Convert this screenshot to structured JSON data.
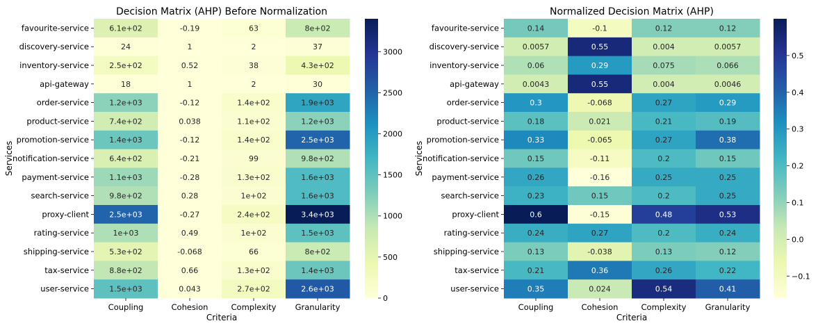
{
  "chart_data": [
    {
      "type": "heatmap",
      "title": "Decision Matrix (AHP) Before Normalization",
      "xlabel": "Criteria",
      "ylabel": "Services",
      "columns": [
        "Coupling",
        "Cohesion",
        "Complexity",
        "Granularity"
      ],
      "rows": [
        "favourite-service",
        "discovery-service",
        "inventory-service",
        "api-gateway",
        "order-service",
        "product-service",
        "promotion-service",
        "notification-service",
        "payment-service",
        "search-service",
        "proxy-client",
        "rating-service",
        "shipping-service",
        "tax-service",
        "user-service"
      ],
      "values": [
        [
          610,
          -0.19,
          63,
          800
        ],
        [
          24,
          1,
          2,
          37
        ],
        [
          250,
          0.52,
          38,
          430
        ],
        [
          18,
          1,
          2,
          30
        ],
        [
          1200,
          -0.12,
          140,
          1900
        ],
        [
          740,
          0.038,
          110,
          1200
        ],
        [
          1400,
          -0.12,
          140,
          2500
        ],
        [
          640,
          -0.21,
          99,
          980
        ],
        [
          1100,
          -0.28,
          130,
          1600
        ],
        [
          980,
          0.28,
          100,
          1600
        ],
        [
          2500,
          -0.27,
          240,
          3400
        ],
        [
          1000,
          0.49,
          100,
          1500
        ],
        [
          530,
          -0.068,
          66,
          800
        ],
        [
          880,
          0.66,
          130,
          1400
        ],
        [
          1500,
          0.043,
          270,
          2600
        ]
      ],
      "labels": [
        [
          "6.1e+02",
          "-0.19",
          "63",
          "8e+02"
        ],
        [
          "24",
          "1",
          "2",
          "37"
        ],
        [
          "2.5e+02",
          "0.52",
          "38",
          "4.3e+02"
        ],
        [
          "18",
          "1",
          "2",
          "30"
        ],
        [
          "1.2e+03",
          "-0.12",
          "1.4e+02",
          "1.9e+03"
        ],
        [
          "7.4e+02",
          "0.038",
          "1.1e+02",
          "1.2e+03"
        ],
        [
          "1.4e+03",
          "-0.12",
          "1.4e+02",
          "2.5e+03"
        ],
        [
          "6.4e+02",
          "-0.21",
          "99",
          "9.8e+02"
        ],
        [
          "1.1e+03",
          "-0.28",
          "1.3e+02",
          "1.6e+03"
        ],
        [
          "9.8e+02",
          "0.28",
          "1e+02",
          "1.6e+03"
        ],
        [
          "2.5e+03",
          "-0.27",
          "2.4e+02",
          "3.4e+03"
        ],
        [
          "1e+03",
          "0.49",
          "1e+02",
          "1.5e+03"
        ],
        [
          "5.3e+02",
          "-0.068",
          "66",
          "8e+02"
        ],
        [
          "8.8e+02",
          "0.66",
          "1.3e+02",
          "1.4e+03"
        ],
        [
          "1.5e+03",
          "0.043",
          "2.7e+02",
          "2.6e+03"
        ]
      ],
      "colorbar": {
        "range": [
          -0.28,
          3400
        ],
        "ticks": [
          0,
          500,
          1000,
          1500,
          2000,
          2500,
          3000
        ],
        "tick_labels": [
          "0",
          "500",
          "1000",
          "1500",
          "2000",
          "2500",
          "3000"
        ]
      },
      "colormap": "YlGnBu"
    },
    {
      "type": "heatmap",
      "title": "Normalized Decision Matrix (AHP)",
      "xlabel": "Criteria",
      "ylabel": "Services",
      "columns": [
        "Coupling",
        "Cohesion",
        "Complexity",
        "Granularity"
      ],
      "rows": [
        "favourite-service",
        "discovery-service",
        "inventory-service",
        "api-gateway",
        "order-service",
        "product-service",
        "promotion-service",
        "notification-service",
        "payment-service",
        "search-service",
        "proxy-client",
        "rating-service",
        "shipping-service",
        "tax-service",
        "user-service"
      ],
      "values": [
        [
          0.14,
          -0.1,
          0.12,
          0.12
        ],
        [
          0.0057,
          0.55,
          0.004,
          0.0057
        ],
        [
          0.06,
          0.29,
          0.075,
          0.066
        ],
        [
          0.0043,
          0.55,
          0.004,
          0.0046
        ],
        [
          0.3,
          -0.068,
          0.27,
          0.29
        ],
        [
          0.18,
          0.021,
          0.21,
          0.19
        ],
        [
          0.33,
          -0.065,
          0.27,
          0.38
        ],
        [
          0.15,
          -0.11,
          0.2,
          0.15
        ],
        [
          0.26,
          -0.16,
          0.25,
          0.25
        ],
        [
          0.23,
          0.15,
          0.2,
          0.25
        ],
        [
          0.6,
          -0.15,
          0.48,
          0.53
        ],
        [
          0.24,
          0.27,
          0.2,
          0.24
        ],
        [
          0.13,
          -0.038,
          0.13,
          0.12
        ],
        [
          0.21,
          0.36,
          0.26,
          0.22
        ],
        [
          0.35,
          0.024,
          0.54,
          0.41
        ]
      ],
      "labels": [
        [
          "0.14",
          "-0.1",
          "0.12",
          "0.12"
        ],
        [
          "0.0057",
          "0.55",
          "0.004",
          "0.0057"
        ],
        [
          "0.06",
          "0.29",
          "0.075",
          "0.066"
        ],
        [
          "0.0043",
          "0.55",
          "0.004",
          "0.0046"
        ],
        [
          "0.3",
          "-0.068",
          "0.27",
          "0.29"
        ],
        [
          "0.18",
          "0.021",
          "0.21",
          "0.19"
        ],
        [
          "0.33",
          "-0.065",
          "0.27",
          "0.38"
        ],
        [
          "0.15",
          "-0.11",
          "0.2",
          "0.15"
        ],
        [
          "0.26",
          "-0.16",
          "0.25",
          "0.25"
        ],
        [
          "0.23",
          "0.15",
          "0.2",
          "0.25"
        ],
        [
          "0.6",
          "-0.15",
          "0.48",
          "0.53"
        ],
        [
          "0.24",
          "0.27",
          "0.2",
          "0.24"
        ],
        [
          "0.13",
          "-0.038",
          "0.13",
          "0.12"
        ],
        [
          "0.21",
          "0.36",
          "0.26",
          "0.22"
        ],
        [
          "0.35",
          "0.024",
          "0.54",
          "0.41"
        ]
      ],
      "colorbar": {
        "range": [
          -0.16,
          0.6
        ],
        "ticks": [
          -0.1,
          0.0,
          0.1,
          0.2,
          0.3,
          0.4,
          0.5
        ],
        "tick_labels": [
          "−0.1",
          "0.0",
          "0.1",
          "0.2",
          "0.3",
          "0.4",
          "0.5"
        ]
      },
      "colormap": "YlGnBu"
    }
  ]
}
